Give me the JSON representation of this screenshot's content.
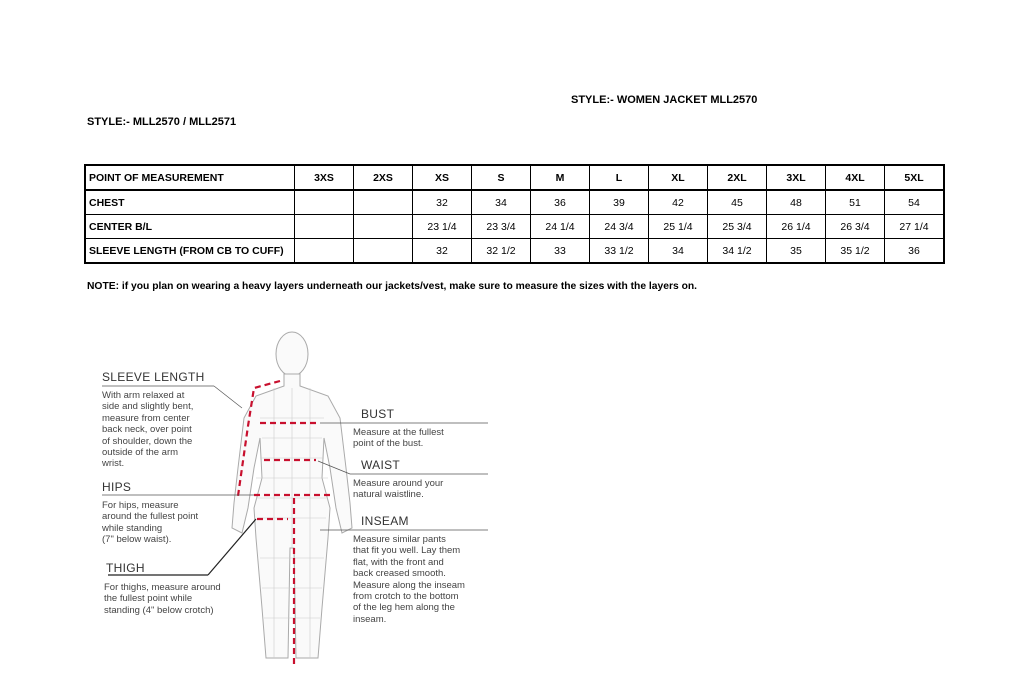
{
  "style_title": "STYLE:- WOMEN JACKET   MLL2570",
  "style_codes": "STYLE:- MLL2570 / MLL2571",
  "table": {
    "headers": [
      "POINT OF MEASUREMENT",
      "3XS",
      "2XS",
      "XS",
      "S",
      "M",
      "L",
      "XL",
      "2XL",
      "3XL",
      "4XL",
      "5XL"
    ],
    "rows": [
      [
        "CHEST",
        "",
        "",
        "32",
        "34",
        "36",
        "39",
        "42",
        "45",
        "48",
        "51",
        "54"
      ],
      [
        "CENTER B/L",
        "",
        "",
        "23 1/4",
        "23 3/4",
        "24 1/4",
        "24 3/4",
        "25 1/4",
        "25 3/4",
        "26 1/4",
        "26 3/4",
        "27 1/4"
      ],
      [
        "SLEEVE LENGTH (FROM CB TO CUFF)",
        "",
        "",
        "32",
        "32 1/2",
        "33",
        "33 1/2",
        "34",
        "34 1/2",
        "35",
        "35 1/2",
        "36"
      ]
    ]
  },
  "note": "NOTE: if you plan on wearing a heavy layers underneath our jackets/vest, make sure to measure the sizes with the layers on.",
  "diagram": {
    "sleeve_title": "SLEEVE LENGTH",
    "sleeve_text": "With arm relaxed at\nside and slightly bent,\nmeasure from center\nback neck, over point\nof shoulder, down the\noutside of the arm\nwrist.",
    "hips_title": "HIPS",
    "hips_text": "For hips, measure\naround the fullest point\nwhile standing\n(7\" below waist).",
    "thigh_title": "THIGH",
    "thigh_text": "For thighs, measure around\nthe fullest point while\nstanding (4\" below crotch)",
    "bust_title": "BUST",
    "bust_text": "Measure at the fullest\npoint of the bust.",
    "waist_title": "WAIST",
    "waist_text": "Measure around your\nnatural waistline.",
    "inseam_title": "INSEAM",
    "inseam_text": "Measure similar pants\nthat fit you well. Lay them\nflat, with the front and\nback creased smooth.\nMeasure along the inseam\nfrom crotch to the bottom\nof the leg hem along the\ninseam.",
    "accent_color": "#c8102e"
  }
}
